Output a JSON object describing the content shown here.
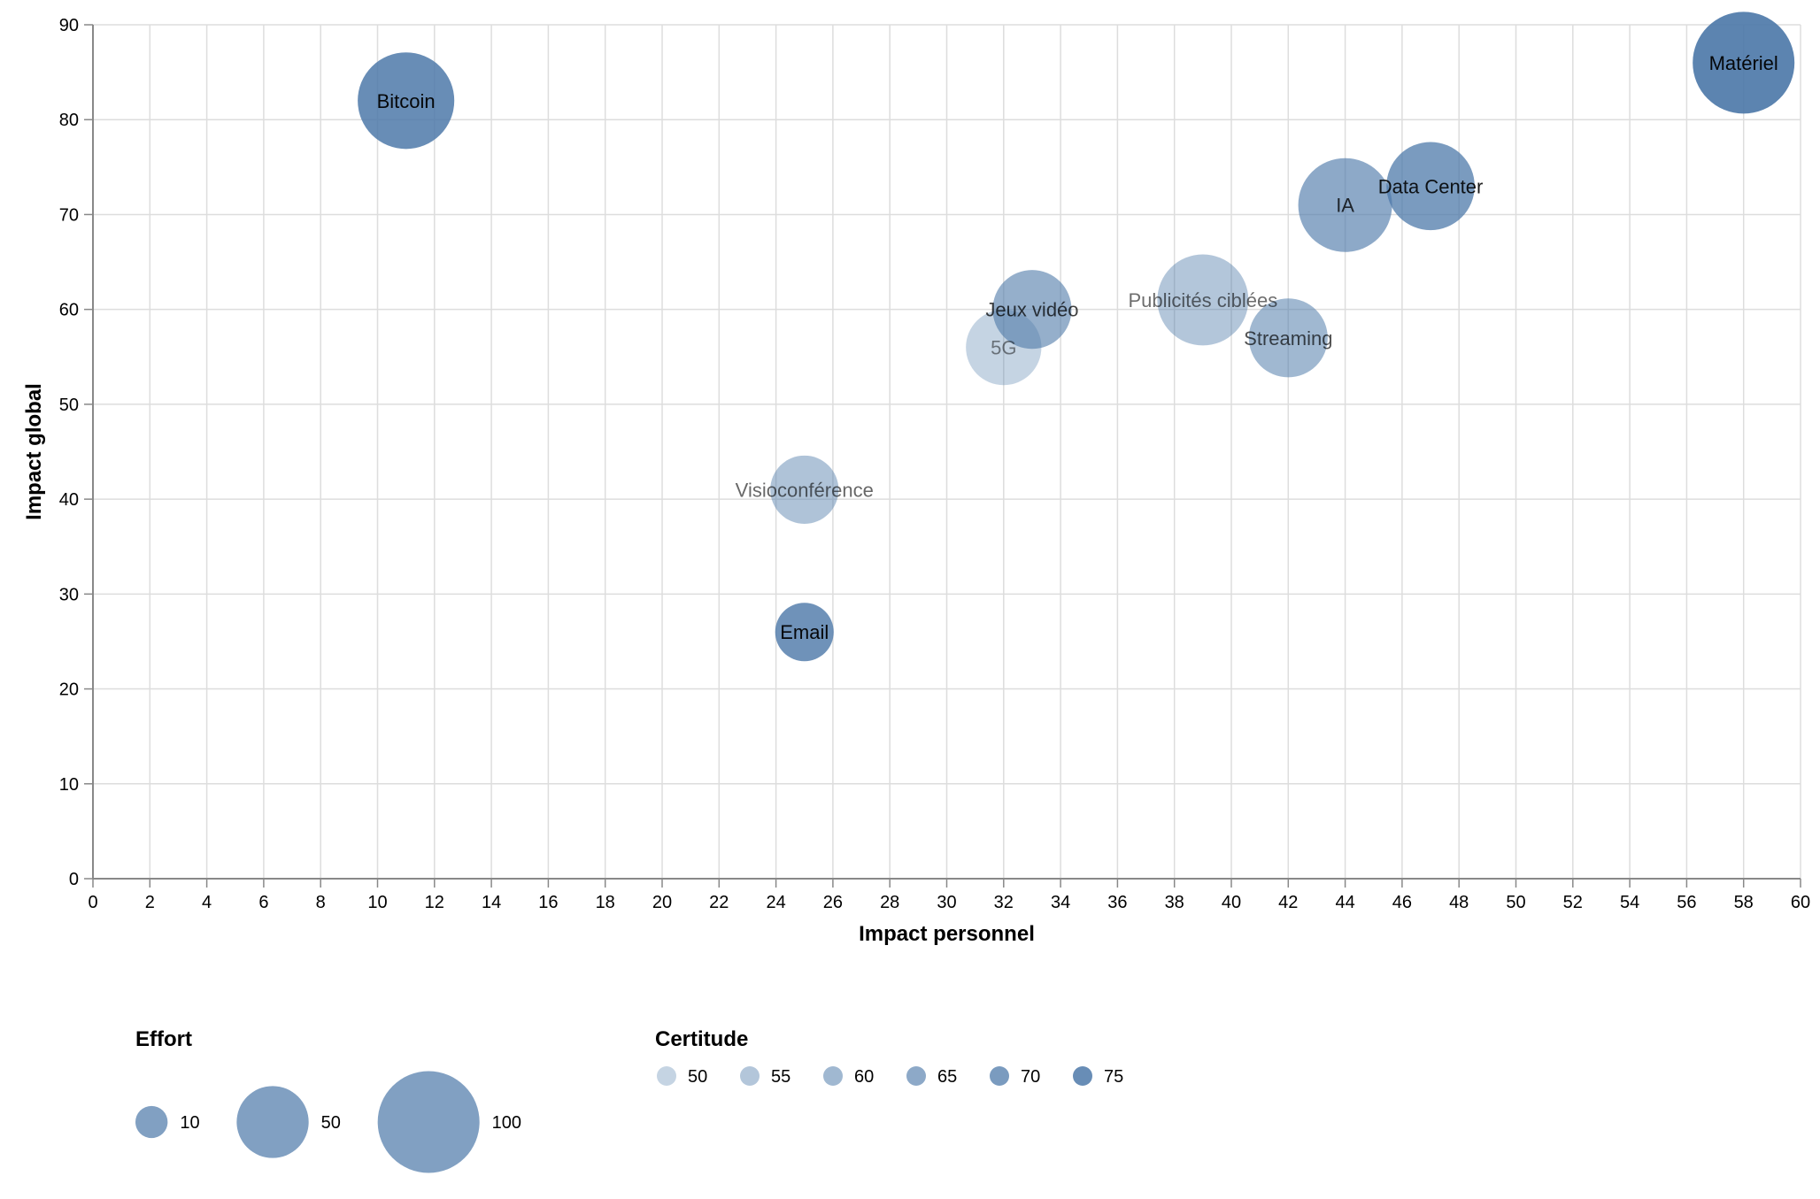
{
  "chart_data": {
    "type": "scatter",
    "xlabel": "Impact personnel",
    "ylabel": "Impact global",
    "xlim": [
      0,
      60
    ],
    "ylim": [
      0,
      90
    ],
    "x_ticks": [
      "0",
      "2",
      "4",
      "6",
      "8",
      "10",
      "12",
      "14",
      "16",
      "18",
      "20",
      "22",
      "24",
      "26",
      "28",
      "30",
      "32",
      "34",
      "36",
      "38",
      "40",
      "42",
      "44",
      "46",
      "48",
      "50",
      "52",
      "54",
      "56",
      "58",
      "60"
    ],
    "y_ticks": [
      "0",
      "10",
      "20",
      "30",
      "40",
      "50",
      "60",
      "70",
      "80",
      "90"
    ],
    "grid": true,
    "base_color": "#4c78a8",
    "points": [
      {
        "label": "Bitcoin",
        "x": 11,
        "y": 82,
        "effort": 90,
        "certitude": 75
      },
      {
        "label": "Matériel",
        "x": 58,
        "y": 86,
        "effort": 100,
        "certitude": 78
      },
      {
        "label": "Data Center",
        "x": 47,
        "y": 73,
        "effort": 75,
        "certitude": 70
      },
      {
        "label": "IA",
        "x": 44,
        "y": 71,
        "effort": 85,
        "certitude": 65
      },
      {
        "label": "Publicités ciblées",
        "x": 39,
        "y": 61,
        "effort": 80,
        "certitude": 55
      },
      {
        "label": "Jeux vidéo",
        "x": 33,
        "y": 60,
        "effort": 60,
        "certitude": 63
      },
      {
        "label": "5G",
        "x": 32,
        "y": 56,
        "effort": 55,
        "certitude": 50
      },
      {
        "label": "Streaming",
        "x": 42,
        "y": 57,
        "effort": 60,
        "certitude": 60
      },
      {
        "label": "Visioconférence",
        "x": 25,
        "y": 41,
        "effort": 45,
        "certitude": 56
      },
      {
        "label": "Email",
        "x": 25,
        "y": 26,
        "effort": 33,
        "certitude": 73
      }
    ],
    "legend": {
      "size": {
        "title": "Effort",
        "values": [
          10,
          50,
          100
        ],
        "labels": [
          "10",
          "50",
          "100"
        ]
      },
      "opacity": {
        "title": "Certitude",
        "values": [
          50,
          55,
          60,
          65,
          70,
          75
        ],
        "labels": [
          "50",
          "55",
          "60",
          "65",
          "70",
          "75"
        ]
      }
    }
  }
}
